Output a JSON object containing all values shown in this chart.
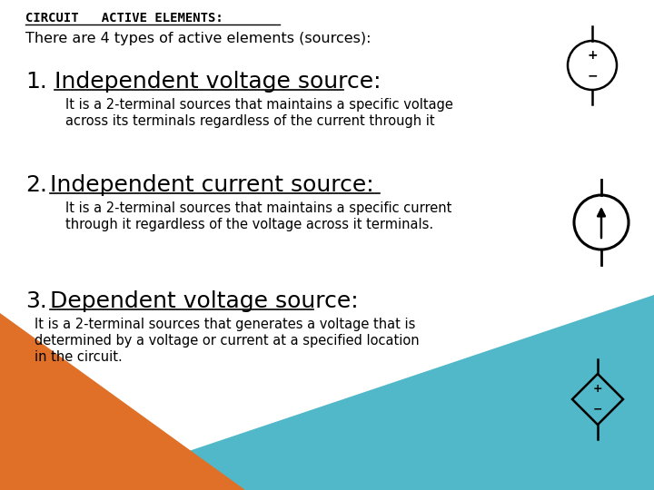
{
  "title": "CIRCUIT   ACTIVE ELEMENTS:",
  "bg_color": "#ffffff",
  "orange_color": "#e07028",
  "blue_color": "#50b8c8",
  "intro_text": "There are 4 types of active elements (sources):",
  "items": [
    {
      "number": "1.",
      "heading": "Independent voltage source:",
      "body_line1": "It is a 2-terminal sources that maintains a specific voltage",
      "body_line2": "across its terminals regardless of the current through it"
    },
    {
      "number": "2.",
      "heading": "Independent current source:",
      "body_line1": "It is a 2-terminal sources that maintains a specific current",
      "body_line2": "through it regardless of the voltage across it terminals."
    },
    {
      "number": "3.",
      "heading": "Dependent voltage source:",
      "body_line1": "It is a 2-terminal sources that generates a voltage that is",
      "body_line2": "determined by a voltage or current at a specified location",
      "body_line3": "in the circuit."
    }
  ]
}
